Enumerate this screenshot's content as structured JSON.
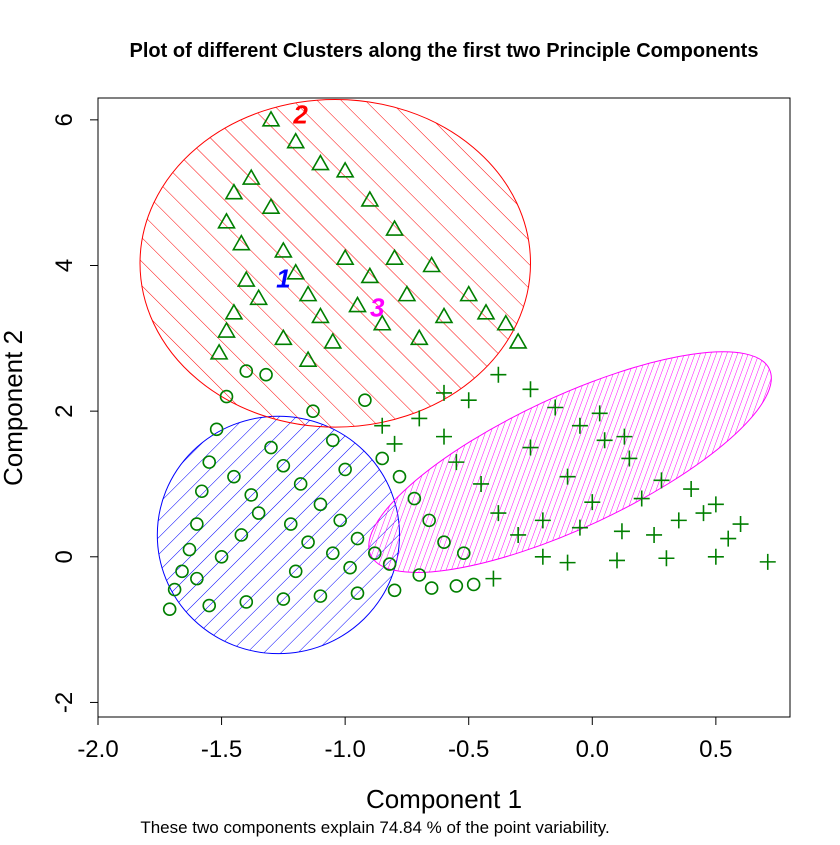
{
  "chart_data": {
    "type": "scatter",
    "title": "Plot of different Clusters along the first two Principle Components",
    "xlabel": "Component 1",
    "ylabel": "Component 2",
    "sub": "These two components explain 74.84 % of the point variability.",
    "xlim": [
      -2.0,
      0.8
    ],
    "ylim": [
      -2.2,
      6.3
    ],
    "x_ticks": [
      -2.0,
      -1.5,
      -1.0,
      -0.5,
      0.0,
      0.5
    ],
    "x_tick_labels": [
      "-2.0",
      "-1.5",
      "-1.0",
      "-0.5",
      "0.0",
      "0.5"
    ],
    "y_ticks": [
      -2,
      0,
      2,
      4,
      6
    ],
    "y_tick_labels": [
      "-2",
      "0",
      "2",
      "4",
      "6"
    ],
    "grid": false,
    "legend": "none",
    "point_color": "#007f00",
    "clusters": [
      {
        "label": "1",
        "color": "#0000ff",
        "marker": "circle",
        "ellipse": {
          "cx": -1.27,
          "cy": 0.3,
          "rx": 0.49,
          "ry": 1.63,
          "angle": 0
        },
        "shading": "hatch-45",
        "points": [
          [
            -1.71,
            -0.72
          ],
          [
            -1.69,
            -0.45
          ],
          [
            -1.66,
            -0.2
          ],
          [
            -1.63,
            0.1
          ],
          [
            -1.6,
            0.45
          ],
          [
            -1.58,
            0.9
          ],
          [
            -1.55,
            1.3
          ],
          [
            -1.52,
            1.75
          ],
          [
            -1.48,
            2.2
          ],
          [
            -1.4,
            2.55
          ],
          [
            -1.32,
            2.5
          ],
          [
            -1.3,
            1.5
          ],
          [
            -1.25,
            1.25
          ],
          [
            -1.18,
            1.0
          ],
          [
            -1.1,
            0.72
          ],
          [
            -1.02,
            0.5
          ],
          [
            -0.95,
            0.25
          ],
          [
            -0.88,
            0.05
          ],
          [
            -0.82,
            -0.1
          ],
          [
            -1.13,
            2.0
          ],
          [
            -1.05,
            1.6
          ],
          [
            -1.0,
            1.2
          ],
          [
            -0.92,
            2.15
          ],
          [
            -0.85,
            1.35
          ],
          [
            -0.78,
            1.1
          ],
          [
            -0.72,
            0.8
          ],
          [
            -0.66,
            0.5
          ],
          [
            -0.6,
            0.2
          ],
          [
            -0.52,
            0.05
          ],
          [
            -0.48,
            -0.38
          ],
          [
            -0.55,
            -0.4
          ],
          [
            -0.65,
            -0.43
          ],
          [
            -0.8,
            -0.46
          ],
          [
            -0.95,
            -0.5
          ],
          [
            -1.1,
            -0.54
          ],
          [
            -1.25,
            -0.58
          ],
          [
            -1.4,
            -0.62
          ],
          [
            -1.55,
            -0.67
          ],
          [
            -1.5,
            0.0
          ],
          [
            -1.42,
            0.3
          ],
          [
            -1.35,
            0.6
          ],
          [
            -1.45,
            1.1
          ],
          [
            -1.38,
            0.85
          ],
          [
            -1.22,
            0.45
          ],
          [
            -1.15,
            0.2
          ],
          [
            -1.05,
            0.05
          ],
          [
            -0.98,
            -0.15
          ],
          [
            -1.6,
            -0.3
          ],
          [
            -1.2,
            -0.2
          ],
          [
            -0.7,
            -0.25
          ]
        ]
      },
      {
        "label": "2",
        "color": "#ff0000",
        "marker": "triangle",
        "ellipse": {
          "cx": -1.04,
          "cy": 4.03,
          "rx": 0.79,
          "ry": 2.25,
          "angle": 0
        },
        "shading": "hatch-45",
        "points": [
          [
            -1.3,
            6.0
          ],
          [
            -1.38,
            5.2
          ],
          [
            -1.45,
            5.0
          ],
          [
            -1.48,
            4.6
          ],
          [
            -1.42,
            4.3
          ],
          [
            -1.4,
            3.8
          ],
          [
            -1.45,
            3.35
          ],
          [
            -1.48,
            3.1
          ],
          [
            -1.51,
            2.8
          ],
          [
            -1.2,
            5.7
          ],
          [
            -1.1,
            5.4
          ],
          [
            -1.0,
            5.3
          ],
          [
            -0.9,
            4.9
          ],
          [
            -0.8,
            4.5
          ],
          [
            -0.65,
            4.0
          ],
          [
            -0.5,
            3.6
          ],
          [
            -0.43,
            3.35
          ],
          [
            -0.35,
            3.2
          ],
          [
            -0.3,
            2.95
          ],
          [
            -1.3,
            4.8
          ],
          [
            -1.25,
            4.2
          ],
          [
            -1.2,
            3.9
          ],
          [
            -1.15,
            3.6
          ],
          [
            -1.1,
            3.3
          ],
          [
            -1.05,
            2.95
          ],
          [
            -0.95,
            3.45
          ],
          [
            -0.9,
            3.85
          ],
          [
            -0.85,
            3.2
          ],
          [
            -0.75,
            3.6
          ],
          [
            -0.7,
            3.0
          ],
          [
            -1.35,
            3.55
          ],
          [
            -1.25,
            3.0
          ],
          [
            -1.15,
            2.7
          ],
          [
            -1.0,
            4.1
          ],
          [
            -0.8,
            4.1
          ],
          [
            -0.6,
            3.3
          ]
        ]
      },
      {
        "label": "3",
        "color": "#ff00ff",
        "marker": "plus",
        "ellipse": {
          "cx": -0.09,
          "cy": 1.3,
          "rx": 0.89,
          "ry": 0.9,
          "angle": -25
        },
        "shading": "hatch-45-dense",
        "points": [
          [
            0.71,
            -0.07
          ],
          [
            0.6,
            0.45
          ],
          [
            0.5,
            0.72
          ],
          [
            0.4,
            0.93
          ],
          [
            0.28,
            1.05
          ],
          [
            0.15,
            1.35
          ],
          [
            0.05,
            1.6
          ],
          [
            -0.05,
            1.8
          ],
          [
            -0.15,
            2.05
          ],
          [
            -0.25,
            2.3
          ],
          [
            -0.38,
            2.5
          ],
          [
            0.03,
            1.97
          ],
          [
            0.13,
            1.65
          ],
          [
            -0.6,
            1.65
          ],
          [
            -0.55,
            1.3
          ],
          [
            -0.45,
            1.0
          ],
          [
            -0.38,
            0.6
          ],
          [
            -0.3,
            0.3
          ],
          [
            -0.2,
            0.0
          ],
          [
            -0.1,
            -0.08
          ],
          [
            0.1,
            -0.05
          ],
          [
            0.3,
            -0.02
          ],
          [
            0.5,
            0.0
          ],
          [
            -0.4,
            -0.3
          ],
          [
            -0.25,
            1.5
          ],
          [
            -0.1,
            1.1
          ],
          [
            0.0,
            0.75
          ],
          [
            0.12,
            0.35
          ],
          [
            0.25,
            0.3
          ],
          [
            0.35,
            0.5
          ],
          [
            0.45,
            0.6
          ],
          [
            -0.5,
            2.15
          ],
          [
            -0.6,
            2.25
          ],
          [
            -0.7,
            1.9
          ],
          [
            -0.8,
            1.55
          ],
          [
            -0.85,
            1.8
          ],
          [
            -0.2,
            0.5
          ],
          [
            -0.05,
            0.4
          ],
          [
            0.2,
            0.8
          ],
          [
            0.55,
            0.25
          ]
        ]
      }
    ]
  }
}
